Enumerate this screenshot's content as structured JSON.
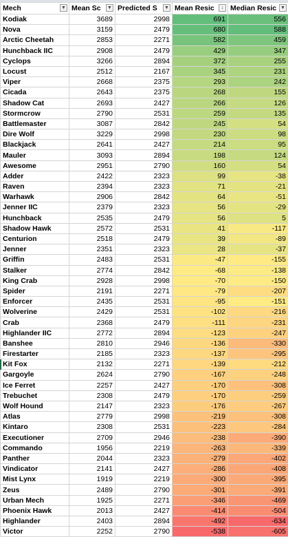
{
  "columns": [
    {
      "label": "Mech",
      "filter_icon": "chevron-down-icon"
    },
    {
      "label": "Mean Sc",
      "filter_icon": "chevron-down-icon"
    },
    {
      "label": "Predicted S",
      "filter_icon": "chevron-down-icon"
    },
    {
      "label": "Mean Resic",
      "filter_icon": "sort-descending-icon"
    },
    {
      "label": "Median Resic",
      "filter_icon": "chevron-down-icon"
    }
  ],
  "color_scale": {
    "high": "#63be7b",
    "mid": "#ffeb84",
    "low": "#f8696b"
  },
  "rows": [
    {
      "mech": "Kodiak",
      "mean_score": "3689",
      "predicted": "2998",
      "mean_resid": "691",
      "median_resid": "556"
    },
    {
      "mech": "Nova",
      "mean_score": "3159",
      "predicted": "2479",
      "mean_resid": "680",
      "median_resid": "588"
    },
    {
      "mech": "Arctic Cheetah",
      "mean_score": "2853",
      "predicted": "2271",
      "mean_resid": "582",
      "median_resid": "459"
    },
    {
      "mech": "Hunchback IIC",
      "mean_score": "2908",
      "predicted": "2479",
      "mean_resid": "429",
      "median_resid": "347"
    },
    {
      "mech": "Cyclops",
      "mean_score": "3266",
      "predicted": "2894",
      "mean_resid": "372",
      "median_resid": "255"
    },
    {
      "mech": "Locust",
      "mean_score": "2512",
      "predicted": "2167",
      "mean_resid": "345",
      "median_resid": "231"
    },
    {
      "mech": "Viper",
      "mean_score": "2668",
      "predicted": "2375",
      "mean_resid": "293",
      "median_resid": "242"
    },
    {
      "mech": "Cicada",
      "mean_score": "2643",
      "predicted": "2375",
      "mean_resid": "268",
      "median_resid": "155"
    },
    {
      "mech": "Shadow Cat",
      "mean_score": "2693",
      "predicted": "2427",
      "mean_resid": "266",
      "median_resid": "126"
    },
    {
      "mech": "Stormcrow",
      "mean_score": "2790",
      "predicted": "2531",
      "mean_resid": "259",
      "median_resid": "135"
    },
    {
      "mech": "Battlemaster",
      "mean_score": "3087",
      "predicted": "2842",
      "mean_resid": "245",
      "median_resid": "54"
    },
    {
      "mech": "Dire Wolf",
      "mean_score": "3229",
      "predicted": "2998",
      "mean_resid": "230",
      "median_resid": "98"
    },
    {
      "mech": "Blackjack",
      "mean_score": "2641",
      "predicted": "2427",
      "mean_resid": "214",
      "median_resid": "95"
    },
    {
      "mech": "Mauler",
      "mean_score": "3093",
      "predicted": "2894",
      "mean_resid": "198",
      "median_resid": "124"
    },
    {
      "mech": "Awesome",
      "mean_score": "2951",
      "predicted": "2790",
      "mean_resid": "160",
      "median_resid": "54"
    },
    {
      "mech": "Adder",
      "mean_score": "2422",
      "predicted": "2323",
      "mean_resid": "99",
      "median_resid": "-38"
    },
    {
      "mech": "Raven",
      "mean_score": "2394",
      "predicted": "2323",
      "mean_resid": "71",
      "median_resid": "-21"
    },
    {
      "mech": "Warhawk",
      "mean_score": "2906",
      "predicted": "2842",
      "mean_resid": "64",
      "median_resid": "-51"
    },
    {
      "mech": "Jenner IIC",
      "mean_score": "2379",
      "predicted": "2323",
      "mean_resid": "56",
      "median_resid": "-29"
    },
    {
      "mech": "Hunchback",
      "mean_score": "2535",
      "predicted": "2479",
      "mean_resid": "56",
      "median_resid": "5"
    },
    {
      "mech": "Shadow Hawk",
      "mean_score": "2572",
      "predicted": "2531",
      "mean_resid": "41",
      "median_resid": "-117"
    },
    {
      "mech": "Centurion",
      "mean_score": "2518",
      "predicted": "2479",
      "mean_resid": "39",
      "median_resid": "-89"
    },
    {
      "mech": "Jenner",
      "mean_score": "2351",
      "predicted": "2323",
      "mean_resid": "28",
      "median_resid": "-37"
    },
    {
      "mech": "Griffin",
      "mean_score": "2483",
      "predicted": "2531",
      "mean_resid": "-47",
      "median_resid": "-155"
    },
    {
      "mech": "Stalker",
      "mean_score": "2774",
      "predicted": "2842",
      "mean_resid": "-68",
      "median_resid": "-138"
    },
    {
      "mech": "King Crab",
      "mean_score": "2928",
      "predicted": "2998",
      "mean_resid": "-70",
      "median_resid": "-150"
    },
    {
      "mech": "Spider",
      "mean_score": "2191",
      "predicted": "2271",
      "mean_resid": "-79",
      "median_resid": "-207"
    },
    {
      "mech": "Enforcer",
      "mean_score": "2435",
      "predicted": "2531",
      "mean_resid": "-95",
      "median_resid": "-151"
    },
    {
      "mech": "Wolverine",
      "mean_score": "2429",
      "predicted": "2531",
      "mean_resid": "-102",
      "median_resid": "-216"
    },
    {
      "mech": "Crab",
      "mean_score": "2368",
      "predicted": "2479",
      "mean_resid": "-111",
      "median_resid": "-231"
    },
    {
      "mech": "Highlander IIC",
      "mean_score": "2772",
      "predicted": "2894",
      "mean_resid": "-123",
      "median_resid": "-247"
    },
    {
      "mech": "Banshee",
      "mean_score": "2810",
      "predicted": "2946",
      "mean_resid": "-136",
      "median_resid": "-330"
    },
    {
      "mech": "Firestarter",
      "mean_score": "2185",
      "predicted": "2323",
      "mean_resid": "-137",
      "median_resid": "-295"
    },
    {
      "mech": "Kit Fox",
      "mean_score": "2132",
      "predicted": "2271",
      "mean_resid": "-139",
      "median_resid": "-212"
    },
    {
      "mech": "Gargoyle",
      "mean_score": "2624",
      "predicted": "2790",
      "mean_resid": "-167",
      "median_resid": "-248"
    },
    {
      "mech": "Ice Ferret",
      "mean_score": "2257",
      "predicted": "2427",
      "mean_resid": "-170",
      "median_resid": "-308"
    },
    {
      "mech": "Trebuchet",
      "mean_score": "2308",
      "predicted": "2479",
      "mean_resid": "-170",
      "median_resid": "-259"
    },
    {
      "mech": "Wolf Hound",
      "mean_score": "2147",
      "predicted": "2323",
      "mean_resid": "-176",
      "median_resid": "-267"
    },
    {
      "mech": "Atlas",
      "mean_score": "2779",
      "predicted": "2998",
      "mean_resid": "-219",
      "median_resid": "-308"
    },
    {
      "mech": "Kintaro",
      "mean_score": "2308",
      "predicted": "2531",
      "mean_resid": "-223",
      "median_resid": "-284"
    },
    {
      "mech": "Executioner",
      "mean_score": "2709",
      "predicted": "2946",
      "mean_resid": "-238",
      "median_resid": "-390"
    },
    {
      "mech": "Commando",
      "mean_score": "1956",
      "predicted": "2219",
      "mean_resid": "-263",
      "median_resid": "-339"
    },
    {
      "mech": "Panther",
      "mean_score": "2044",
      "predicted": "2323",
      "mean_resid": "-279",
      "median_resid": "-402"
    },
    {
      "mech": "Vindicator",
      "mean_score": "2141",
      "predicted": "2427",
      "mean_resid": "-286",
      "median_resid": "-408"
    },
    {
      "mech": "Mist Lynx",
      "mean_score": "1919",
      "predicted": "2219",
      "mean_resid": "-300",
      "median_resid": "-395"
    },
    {
      "mech": "Zeus",
      "mean_score": "2489",
      "predicted": "2790",
      "mean_resid": "-301",
      "median_resid": "-391"
    },
    {
      "mech": "Urban Mech",
      "mean_score": "1925",
      "predicted": "2271",
      "mean_resid": "-346",
      "median_resid": "-469"
    },
    {
      "mech": "Phoenix Hawk",
      "mean_score": "2013",
      "predicted": "2427",
      "mean_resid": "-414",
      "median_resid": "-504"
    },
    {
      "mech": "Highlander",
      "mean_score": "2403",
      "predicted": "2894",
      "mean_resid": "-492",
      "median_resid": "-634"
    },
    {
      "mech": "Victor",
      "mean_score": "2252",
      "predicted": "2790",
      "mean_resid": "-538",
      "median_resid": "-605"
    }
  ]
}
